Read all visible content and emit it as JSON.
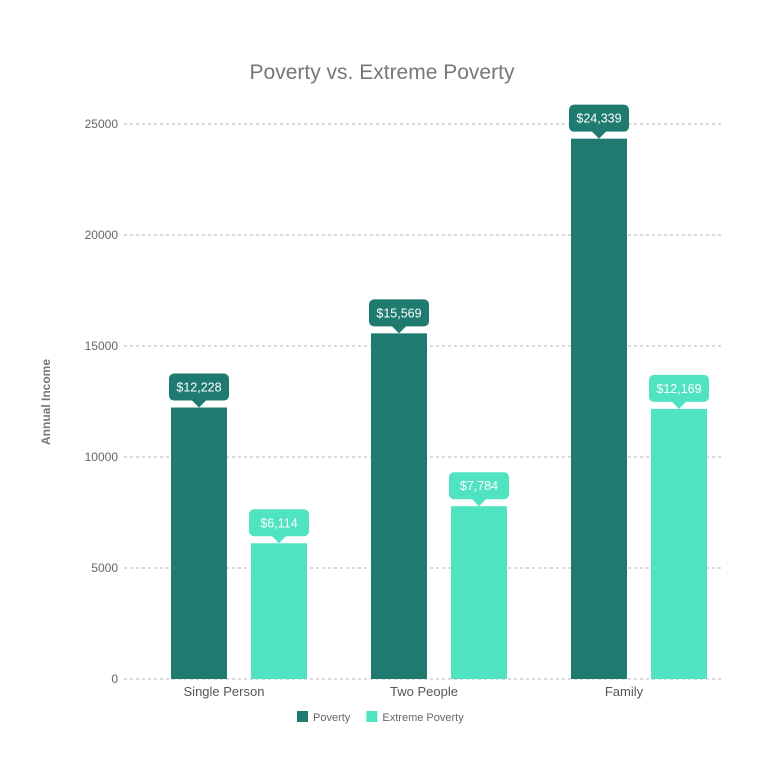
{
  "chart_data": {
    "type": "bar",
    "title": "Poverty vs. Extreme Poverty",
    "ylabel": "Annual Income",
    "xlabel": "",
    "categories": [
      "Single Person",
      "Two People",
      "Family"
    ],
    "ylim": [
      0,
      25000
    ],
    "yticks": [
      0,
      5000,
      10000,
      15000,
      20000,
      25000
    ],
    "grid": true,
    "legend_position": "bottom",
    "series": [
      {
        "name": "Poverty",
        "color": "#1f7b6f",
        "values": [
          12228,
          15569,
          24339
        ],
        "labels": [
          "$12,228",
          "$15,569",
          "$24,339"
        ]
      },
      {
        "name": "Extreme Poverty",
        "color": "#50e3c2",
        "values": [
          6114,
          7784,
          12169
        ],
        "labels": [
          "$6,114",
          "$7,784",
          "$12,169"
        ]
      }
    ]
  }
}
